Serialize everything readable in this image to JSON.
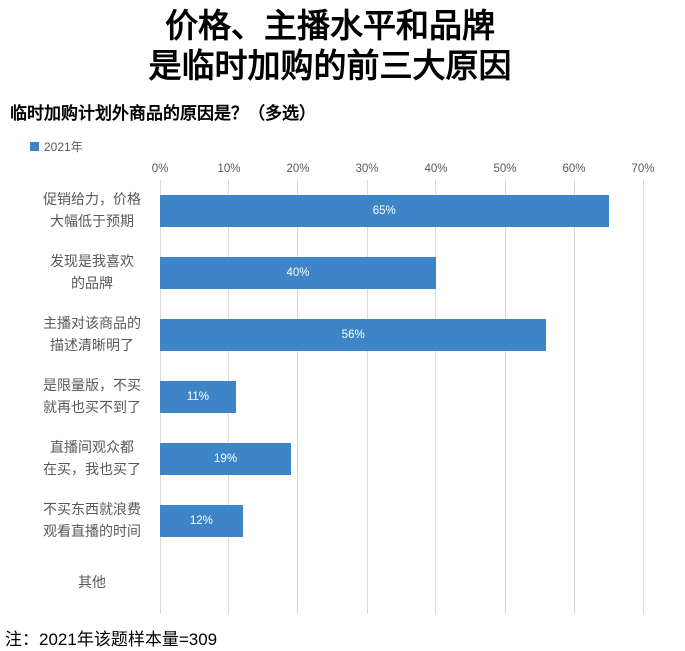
{
  "title": {
    "line1": "价格、主播水平和品牌",
    "line2": "是临时加购的前三大原因"
  },
  "subtitle": "临时加购计划外商品的原因是？（多选）",
  "legend": {
    "series_label": "2021年"
  },
  "note": "注：2021年该题样本量=309",
  "colors": {
    "bar": "#3D85C6",
    "gridline": "#D9D9D9",
    "axis_text": "#595959",
    "category_text": "#595959",
    "bar_label_text": "#ffffff",
    "title_text": "#000000"
  },
  "chart_data": {
    "type": "bar",
    "orientation": "horizontal",
    "title": "临时加购计划外商品的原因是？（多选）",
    "series_name": "2021年",
    "categories": [
      "促销给力，价格\n大幅低于预期",
      "发现是我喜欢\n的品牌",
      "主播对该商品的\n描述清晰明了",
      "是限量版，不买\n就再也买不到了",
      "直播间观众都\n在买，我也买了",
      "不买东西就浪费\n观看直播的时间",
      "其他"
    ],
    "values": [
      65,
      40,
      56,
      11,
      19,
      12,
      0
    ],
    "data_labels": [
      "65%",
      "40%",
      "56%",
      "11%",
      "19%",
      "12%",
      ""
    ],
    "x_ticks": [
      "0%",
      "10%",
      "20%",
      "30%",
      "40%",
      "50%",
      "60%",
      "70%"
    ],
    "xlim": [
      0,
      70
    ],
    "xlabel": "",
    "ylabel": "",
    "grid": true,
    "legend_position": "top-left",
    "bar_color": "#3D85C6",
    "annotation": "注：2021年该题样本量=309"
  }
}
